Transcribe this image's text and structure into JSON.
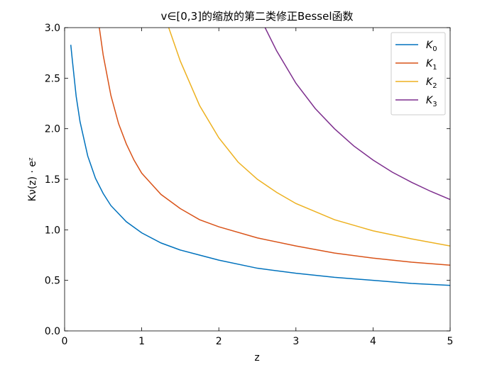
{
  "chart_data": {
    "type": "line",
    "title": "v∈[0,3]的缩放的第二类修正Bessel函数",
    "xlabel": "z",
    "ylabel": "Kν(z) · eᶻ",
    "xlim": [
      0,
      5
    ],
    "ylim": [
      0,
      3.0
    ],
    "xticks": [
      "0",
      "1",
      "2",
      "3",
      "4",
      "5"
    ],
    "yticks": [
      "0.0",
      "0.5",
      "1.0",
      "1.5",
      "2.0",
      "2.5",
      "3.0"
    ],
    "grid": false,
    "legend_position": "top-right",
    "series": [
      {
        "name": "K0",
        "sub": "0",
        "color": "#0072BD",
        "x": [
          0.08,
          0.1,
          0.15,
          0.2,
          0.3,
          0.4,
          0.5,
          0.6,
          0.8,
          1.0,
          1.25,
          1.5,
          1.75,
          2.0,
          2.5,
          3.0,
          3.5,
          4.0,
          4.5,
          5.0
        ],
        "y": [
          2.83,
          2.68,
          2.32,
          2.07,
          1.73,
          1.51,
          1.36,
          1.24,
          1.08,
          0.97,
          0.87,
          0.8,
          0.75,
          0.7,
          0.62,
          0.57,
          0.53,
          0.5,
          0.47,
          0.45
        ]
      },
      {
        "name": "K1",
        "sub": "1",
        "color": "#D95319",
        "x": [
          0.45,
          0.5,
          0.6,
          0.7,
          0.8,
          0.9,
          1.0,
          1.25,
          1.5,
          1.75,
          2.0,
          2.5,
          3.0,
          3.5,
          4.0,
          4.5,
          5.0
        ],
        "y": [
          3.0,
          2.73,
          2.33,
          2.05,
          1.85,
          1.69,
          1.56,
          1.35,
          1.21,
          1.1,
          1.03,
          0.92,
          0.84,
          0.77,
          0.72,
          0.68,
          0.65
        ]
      },
      {
        "name": "K2",
        "sub": "2",
        "color": "#EDB120",
        "x": [
          1.35,
          1.5,
          1.75,
          2.0,
          2.25,
          2.5,
          2.75,
          3.0,
          3.5,
          4.0,
          4.5,
          5.0
        ],
        "y": [
          3.0,
          2.67,
          2.23,
          1.91,
          1.67,
          1.5,
          1.37,
          1.26,
          1.1,
          0.99,
          0.91,
          0.84
        ]
      },
      {
        "name": "K3",
        "sub": "3",
        "color": "#7E2F8E",
        "x": [
          2.6,
          2.75,
          3.0,
          3.25,
          3.5,
          3.75,
          4.0,
          4.25,
          4.5,
          4.75,
          5.0
        ],
        "y": [
          3.0,
          2.77,
          2.45,
          2.2,
          2.0,
          1.83,
          1.69,
          1.57,
          1.47,
          1.38,
          1.3
        ]
      }
    ]
  }
}
